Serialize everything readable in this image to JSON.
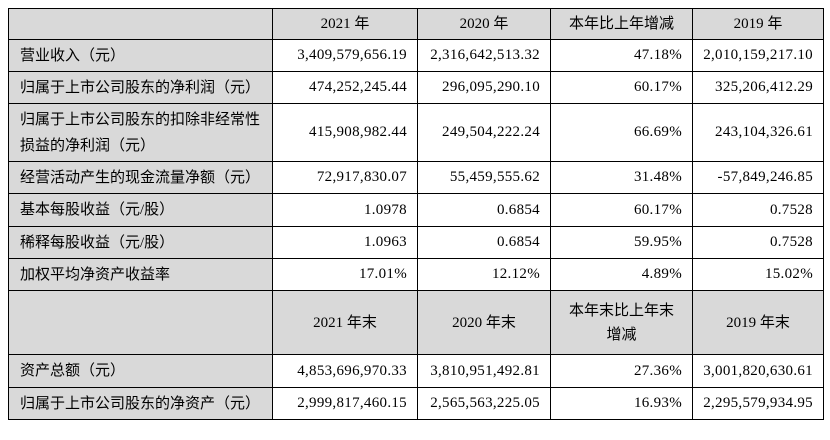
{
  "colors": {
    "header_fill": "#d9d9d9",
    "label_fill": "#d9d9d9",
    "cell_fill": "#ffffff",
    "border": "#000000",
    "text": "#000000",
    "page_background": "#ffffff"
  },
  "table": {
    "section1": {
      "corner": "",
      "columns": [
        "2021 年",
        "2020 年",
        "本年比上年增减",
        "2019 年"
      ],
      "rows": [
        {
          "label": "营业收入（元）",
          "values": [
            "3,409,579,656.19",
            "2,316,642,513.32",
            "47.18%",
            "2,010,159,217.10"
          ]
        },
        {
          "label": "归属于上市公司股东的净利润（元）",
          "values": [
            "474,252,245.44",
            "296,095,290.10",
            "60.17%",
            "325,206,412.29"
          ]
        },
        {
          "label": "归属于上市公司股东的扣除非经常性损益的净利润（元）",
          "values": [
            "415,908,982.44",
            "249,504,222.24",
            "66.69%",
            "243,104,326.61"
          ]
        },
        {
          "label": "经营活动产生的现金流量净额（元）",
          "values": [
            "72,917,830.07",
            "55,459,555.62",
            "31.48%",
            "-57,849,246.85"
          ]
        },
        {
          "label": "基本每股收益（元/股）",
          "values": [
            "1.0978",
            "0.6854",
            "60.17%",
            "0.7528"
          ]
        },
        {
          "label": "稀释每股收益（元/股）",
          "values": [
            "1.0963",
            "0.6854",
            "59.95%",
            "0.7528"
          ]
        },
        {
          "label": "加权平均净资产收益率",
          "values": [
            "17.01%",
            "12.12%",
            "4.89%",
            "15.02%"
          ]
        }
      ]
    },
    "section2": {
      "corner": "",
      "columns": [
        "2021 年末",
        "2020 年末",
        "本年末比上年末增减",
        "2019 年末"
      ],
      "rows": [
        {
          "label": "资产总额（元）",
          "values": [
            "4,853,696,970.33",
            "3,810,951,492.81",
            "27.36%",
            "3,001,820,630.61"
          ]
        },
        {
          "label": "归属于上市公司股东的净资产（元）",
          "values": [
            "2,999,817,460.15",
            "2,565,563,225.05",
            "16.93%",
            "2,295,579,934.95"
          ]
        }
      ]
    }
  }
}
